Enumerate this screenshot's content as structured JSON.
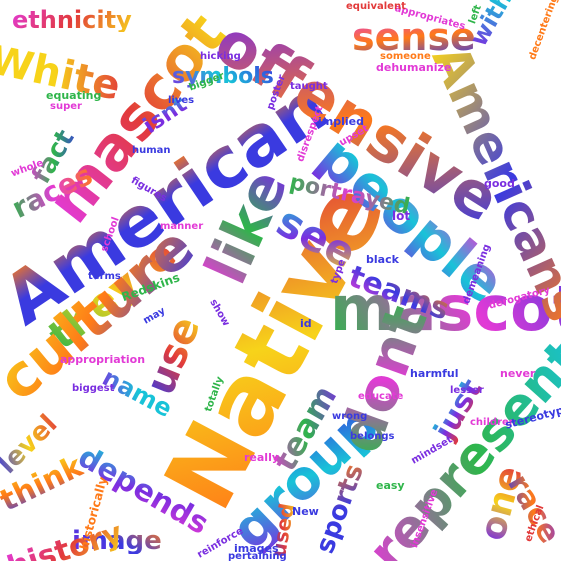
{
  "palette": [
    "#e23ad6",
    "#3a3ae0",
    "#ff7a18",
    "#2fb54a",
    "#f7d31a",
    "#18c3d8",
    "#7a2ee0",
    "#e23a3a"
  ],
  "words": [
    {
      "text": "American",
      "color": "#3a3ae0"
    },
    {
      "text": "Native",
      "color": "#ff7a18"
    },
    {
      "text": "mascot",
      "color": "#e23ad6"
    },
    {
      "text": "offensive",
      "color": "#7a2ee0"
    },
    {
      "text": "people",
      "color": "#e23ad6"
    },
    {
      "text": "mascots",
      "color": "#3a3ae0"
    },
    {
      "text": "like",
      "color": "#7a2ee0"
    },
    {
      "text": "see",
      "color": "#f7d31a"
    },
    {
      "text": "teams",
      "color": "#e23ad6"
    },
    {
      "text": "theyre",
      "color": "#2fb54a"
    },
    {
      "text": "use",
      "color": "#3a3ae0"
    },
    {
      "text": "culture",
      "color": "#f7d31a"
    },
    {
      "text": "group",
      "color": "#3a3ae0"
    },
    {
      "text": "dont",
      "color": "#2fb54a"
    },
    {
      "text": "represent",
      "color": "#18c3d8"
    },
    {
      "text": "depends",
      "color": "#e23ad6"
    },
    {
      "text": "image",
      "color": "#7a2ee0"
    },
    {
      "text": "White",
      "color": "#f7d31a"
    },
    {
      "text": "ethnicity",
      "color": "#e23ad6"
    },
    {
      "text": "sense",
      "color": "#e23ad6"
    },
    {
      "text": "symbols",
      "color": "#3a3ae0"
    },
    {
      "text": "portrayed",
      "color": "#2fb54a"
    },
    {
      "text": "team",
      "color": "#7a2ee0"
    },
    {
      "text": "just",
      "color": "#e23a3a"
    },
    {
      "text": "sports",
      "color": "#3a3ae0"
    },
    {
      "text": "one",
      "color": "#7a2ee0"
    },
    {
      "text": "history",
      "color": "#e23ad6"
    },
    {
      "text": "think",
      "color": "#f7d31a"
    },
    {
      "text": "name",
      "color": "#18c3d8"
    },
    {
      "text": "races",
      "color": "#ff7a18"
    },
    {
      "text": "fact",
      "color": "#3a3ae0"
    },
    {
      "text": "isnt",
      "color": "#7a2ee0"
    },
    {
      "text": "Americans",
      "color": "#f7d31a"
    },
    {
      "text": "level",
      "color": "#3a3ae0"
    },
    {
      "text": "used",
      "color": "#3a3ae0"
    },
    {
      "text": "race",
      "color": "#7a2ee0"
    },
    {
      "text": "without",
      "color": "#7a2ee0"
    },
    {
      "text": "Redskins",
      "color": "#2fb54a"
    },
    {
      "text": "appropriation",
      "color": "#e23ad6"
    },
    {
      "text": "harmful",
      "color": "#3a3ae0"
    },
    {
      "text": "historically",
      "color": "#ff7a18"
    },
    {
      "text": "equating",
      "color": "#2fb54a"
    },
    {
      "text": "super",
      "color": "#e23ad6"
    },
    {
      "text": "human",
      "color": "#3a3ae0"
    },
    {
      "text": "implied",
      "color": "#3a3ae0"
    },
    {
      "text": "black",
      "color": "#3a3ae0"
    },
    {
      "text": "lot",
      "color": "#7a2ee0"
    },
    {
      "text": "good",
      "color": "#7a2ee0"
    },
    {
      "text": "never",
      "color": "#e23ad6"
    },
    {
      "text": "New",
      "color": "#3a3ae0"
    },
    {
      "text": "images",
      "color": "#3a3ae0"
    },
    {
      "text": "really",
      "color": "#e23ad6"
    },
    {
      "text": "easy",
      "color": "#2fb54a"
    },
    {
      "text": "children",
      "color": "#e23ad6"
    },
    {
      "text": "lesser",
      "color": "#7a2ee0"
    },
    {
      "text": "dehumanize",
      "color": "#e23ad6"
    },
    {
      "text": "someone",
      "color": "#ff7a18"
    },
    {
      "text": "terms",
      "color": "#3a3ae0"
    },
    {
      "text": "manner",
      "color": "#e23ad6"
    },
    {
      "text": "show",
      "color": "#7a2ee0"
    },
    {
      "text": "may",
      "color": "#3a3ae0"
    },
    {
      "text": "disrespect",
      "color": "#e23ad6"
    },
    {
      "text": "figures",
      "color": "#7a2ee0"
    },
    {
      "text": "lives",
      "color": "#3a3ae0"
    },
    {
      "text": "taught",
      "color": "#7a2ee0"
    },
    {
      "text": "whole",
      "color": "#e23ad6"
    },
    {
      "text": "bigger",
      "color": "#2fb54a"
    },
    {
      "text": "hicking",
      "color": "#7a2ee0"
    },
    {
      "text": "appropriates",
      "color": "#e23ad6"
    },
    {
      "text": "equivalent",
      "color": "#e23a3a"
    },
    {
      "text": "derogatory",
      "color": "#e23ad6"
    },
    {
      "text": "demeaning",
      "color": "#7a2ee0"
    },
    {
      "text": "decentering",
      "color": "#ff7a18"
    },
    {
      "text": "belongs",
      "color": "#3a3ae0"
    },
    {
      "text": "educate",
      "color": "#e23ad6"
    },
    {
      "text": "mindset",
      "color": "#7a2ee0"
    },
    {
      "text": "stereotypes",
      "color": "#3a3ae0"
    },
    {
      "text": "insensitive",
      "color": "#e23ad6"
    },
    {
      "text": "pertaining",
      "color": "#3a3ae0"
    },
    {
      "text": "reinforce",
      "color": "#7a2ee0"
    },
    {
      "text": "ethical",
      "color": "#e23a3a"
    },
    {
      "text": "type",
      "color": "#7a2ee0"
    },
    {
      "text": "id",
      "color": "#3a3ae0"
    },
    {
      "text": "left",
      "color": "#2fb54a"
    },
    {
      "text": "poster",
      "color": "#7a2ee0"
    },
    {
      "text": "upset",
      "color": "#e23ad6"
    },
    {
      "text": "wrong",
      "color": "#3a3ae0"
    },
    {
      "text": "biggest",
      "color": "#7a2ee0"
    },
    {
      "text": "school",
      "color": "#e23ad6"
    },
    {
      "text": "totally",
      "color": "#2fb54a"
    }
  ]
}
